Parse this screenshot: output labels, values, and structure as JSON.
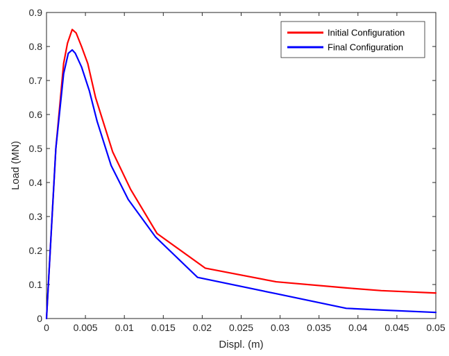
{
  "chart_data": {
    "type": "line",
    "title": "",
    "xlabel": "Displ. (m)",
    "ylabel": "Load (MN)",
    "xlim": [
      0,
      0.05
    ],
    "ylim": [
      0,
      0.9
    ],
    "xticks": [
      0,
      0.005,
      0.01,
      0.015,
      0.02,
      0.025,
      0.03,
      0.035,
      0.04,
      0.045,
      0.05
    ],
    "xtick_labels": [
      "0",
      "0.005",
      "0.01",
      "0.015",
      "0.02",
      "0.025",
      "0.03",
      "0.035",
      "0.04",
      "0.045",
      "0.05"
    ],
    "yticks": [
      0,
      0.1,
      0.2,
      0.3,
      0.4,
      0.5,
      0.6,
      0.7,
      0.8,
      0.9
    ],
    "ytick_labels": [
      "0",
      "0.1",
      "0.2",
      "0.3",
      "0.4",
      "0.5",
      "0.6",
      "0.7",
      "0.8",
      "0.9"
    ],
    "grid": false,
    "legend_position": "top-right",
    "series": [
      {
        "name": "Initial Configuration",
        "color": "#ff0000",
        "x": [
          0,
          0.0012,
          0.0022,
          0.0027,
          0.0033,
          0.0038,
          0.0045,
          0.0053,
          0.0063,
          0.0085,
          0.0108,
          0.0142,
          0.0204,
          0.0295,
          0.0385,
          0.043,
          0.05
        ],
        "y": [
          0,
          0.5,
          0.75,
          0.81,
          0.85,
          0.84,
          0.8,
          0.75,
          0.65,
          0.49,
          0.38,
          0.25,
          0.148,
          0.108,
          0.09,
          0.082,
          0.075
        ]
      },
      {
        "name": "Final Configuration",
        "color": "#0000ff",
        "x": [
          0,
          0.0012,
          0.0022,
          0.0028,
          0.0033,
          0.0037,
          0.0045,
          0.0055,
          0.0065,
          0.0083,
          0.0105,
          0.014,
          0.0194,
          0.0295,
          0.0385,
          0.043,
          0.05
        ],
        "y": [
          0,
          0.5,
          0.72,
          0.78,
          0.79,
          0.78,
          0.74,
          0.67,
          0.58,
          0.45,
          0.35,
          0.24,
          0.121,
          0.073,
          0.03,
          0.025,
          0.018
        ]
      }
    ]
  }
}
